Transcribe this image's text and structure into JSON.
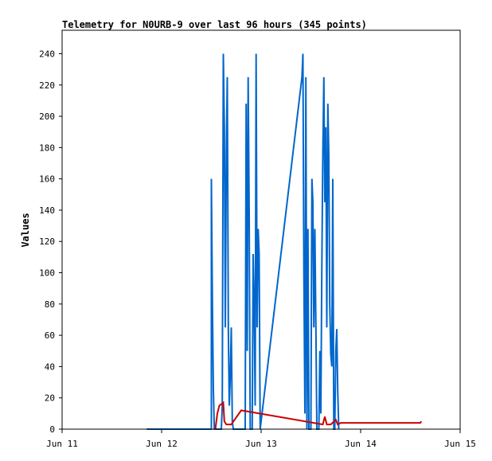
{
  "chart_data": {
    "type": "line",
    "title": "Telemetry for N0URB-9 over last 96 hours (345 points)",
    "xlabel": "",
    "ylabel": "Values",
    "x_tick_labels": [
      "Jun 11",
      "Jun 12",
      "Jun 13",
      "Jun 14",
      "Jun 15"
    ],
    "x_range_days": [
      11,
      15
    ],
    "ylim": [
      0,
      255
    ],
    "y_ticks": [
      0,
      20,
      40,
      60,
      80,
      100,
      120,
      140,
      160,
      180,
      200,
      220,
      240
    ],
    "grid": false,
    "legend": "none",
    "series": [
      {
        "color": "#0066cc",
        "points": [
          [
            11.85,
            0
          ],
          [
            12.5,
            0
          ],
          [
            12.5,
            160
          ],
          [
            12.51,
            80
          ],
          [
            12.52,
            25
          ],
          [
            12.53,
            0
          ],
          [
            12.6,
            0
          ],
          [
            12.61,
            15
          ],
          [
            12.62,
            240
          ],
          [
            12.63,
            193
          ],
          [
            12.64,
            65
          ],
          [
            12.65,
            178
          ],
          [
            12.66,
            225
          ],
          [
            12.67,
            65
          ],
          [
            12.68,
            15
          ],
          [
            12.69,
            33
          ],
          [
            12.7,
            65
          ],
          [
            12.71,
            5
          ],
          [
            12.72,
            0
          ],
          [
            12.84,
            0
          ],
          [
            12.85,
            208
          ],
          [
            12.86,
            50
          ],
          [
            12.87,
            225
          ],
          [
            12.88,
            137
          ],
          [
            12.89,
            0
          ],
          [
            12.91,
            0
          ],
          [
            12.92,
            112
          ],
          [
            12.93,
            80
          ],
          [
            12.94,
            15
          ],
          [
            12.95,
            240
          ],
          [
            12.96,
            65
          ],
          [
            12.97,
            128
          ],
          [
            12.98,
            112
          ],
          [
            12.99,
            0
          ],
          [
            13.41,
            225
          ],
          [
            13.42,
            240
          ],
          [
            13.43,
            100
          ],
          [
            13.44,
            10
          ],
          [
            13.45,
            225
          ],
          [
            13.46,
            0
          ],
          [
            13.47,
            128
          ],
          [
            13.48,
            0
          ],
          [
            13.5,
            0
          ],
          [
            13.51,
            160
          ],
          [
            13.52,
            145
          ],
          [
            13.53,
            65
          ],
          [
            13.54,
            128
          ],
          [
            13.55,
            65
          ],
          [
            13.56,
            0
          ],
          [
            13.58,
            0
          ],
          [
            13.59,
            50
          ],
          [
            13.6,
            10
          ],
          [
            13.61,
            100
          ],
          [
            13.62,
            176
          ],
          [
            13.63,
            225
          ],
          [
            13.64,
            145
          ],
          [
            13.65,
            193
          ],
          [
            13.66,
            65
          ],
          [
            13.67,
            208
          ],
          [
            13.68,
            175
          ],
          [
            13.69,
            80
          ],
          [
            13.7,
            48
          ],
          [
            13.71,
            40
          ],
          [
            13.72,
            160
          ],
          [
            13.73,
            0
          ],
          [
            13.74,
            0
          ],
          [
            13.75,
            50
          ],
          [
            13.76,
            64
          ],
          [
            13.77,
            25
          ],
          [
            13.78,
            0
          ]
        ]
      },
      {
        "color": "#cc0000",
        "points": [
          [
            12.54,
            0
          ],
          [
            12.56,
            10
          ],
          [
            12.58,
            15
          ],
          [
            12.6,
            16
          ],
          [
            12.62,
            17
          ],
          [
            12.63,
            5
          ],
          [
            12.65,
            3
          ],
          [
            12.7,
            3
          ],
          [
            12.8,
            12
          ],
          [
            13.62,
            3
          ],
          [
            13.64,
            8
          ],
          [
            13.66,
            3
          ],
          [
            13.7,
            3
          ],
          [
            13.75,
            6
          ],
          [
            13.77,
            3
          ],
          [
            13.8,
            4
          ],
          [
            14.6,
            4
          ],
          [
            14.61,
            5
          ]
        ]
      }
    ]
  }
}
